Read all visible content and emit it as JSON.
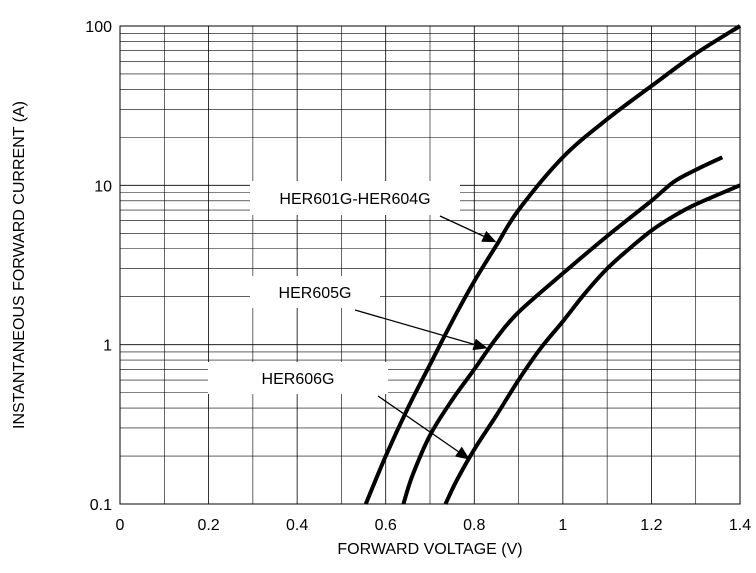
{
  "chart_data": {
    "type": "line",
    "title": "",
    "xlabel": "FORWARD VOLTAGE (V)",
    "ylabel": "INSTANTANEOUS FORWARD CURRENT (A)",
    "xlim": [
      0,
      1.4
    ],
    "ylim": [
      0.1,
      100
    ],
    "yscale": "log",
    "grid": true,
    "x_ticks": [
      0,
      0.2,
      0.4,
      0.6,
      0.8,
      1,
      1.2,
      1.4
    ],
    "x_tick_labels": [
      "0",
      "0.2",
      "0.4",
      "0.6",
      "0.8",
      "1",
      "1.2",
      "1.4"
    ],
    "y_ticks": [
      0.1,
      1,
      10,
      100
    ],
    "y_tick_labels": [
      "0.1",
      "1",
      "10",
      "100"
    ],
    "series": [
      {
        "name": "HER601G-HER604G",
        "points": [
          [
            0.555,
            0.1
          ],
          [
            0.6,
            0.2
          ],
          [
            0.65,
            0.4
          ],
          [
            0.7,
            0.75
          ],
          [
            0.75,
            1.4
          ],
          [
            0.8,
            2.5
          ],
          [
            0.85,
            4.2
          ],
          [
            0.9,
            7
          ],
          [
            1.0,
            15
          ],
          [
            1.1,
            26
          ],
          [
            1.2,
            42
          ],
          [
            1.3,
            67
          ],
          [
            1.4,
            100
          ]
        ]
      },
      {
        "name": "HER605G",
        "points": [
          [
            0.64,
            0.1
          ],
          [
            0.66,
            0.15
          ],
          [
            0.7,
            0.27
          ],
          [
            0.75,
            0.45
          ],
          [
            0.8,
            0.7
          ],
          [
            0.85,
            1.1
          ],
          [
            0.9,
            1.6
          ],
          [
            1.0,
            2.8
          ],
          [
            1.1,
            4.8
          ],
          [
            1.2,
            8
          ],
          [
            1.25,
            10.5
          ],
          [
            1.3,
            12.5
          ],
          [
            1.36,
            15
          ]
        ]
      },
      {
        "name": "HER606G",
        "points": [
          [
            0.735,
            0.1
          ],
          [
            0.76,
            0.14
          ],
          [
            0.8,
            0.22
          ],
          [
            0.85,
            0.36
          ],
          [
            0.9,
            0.6
          ],
          [
            0.95,
            0.95
          ],
          [
            1.0,
            1.4
          ],
          [
            1.05,
            2.1
          ],
          [
            1.1,
            3
          ],
          [
            1.15,
            4
          ],
          [
            1.2,
            5.2
          ],
          [
            1.25,
            6.4
          ],
          [
            1.3,
            7.6
          ],
          [
            1.4,
            10
          ]
        ]
      }
    ],
    "annotations": [
      {
        "text": "HER601G-HER604G",
        "series_index": 0,
        "arrow_to": [
          0.85,
          4.4
        ]
      },
      {
        "text": "HER605G",
        "series_index": 1,
        "arrow_to": [
          0.83,
          0.95
        ]
      },
      {
        "text": "HER606G",
        "series_index": 2,
        "arrow_to": [
          0.79,
          0.19
        ]
      }
    ]
  }
}
